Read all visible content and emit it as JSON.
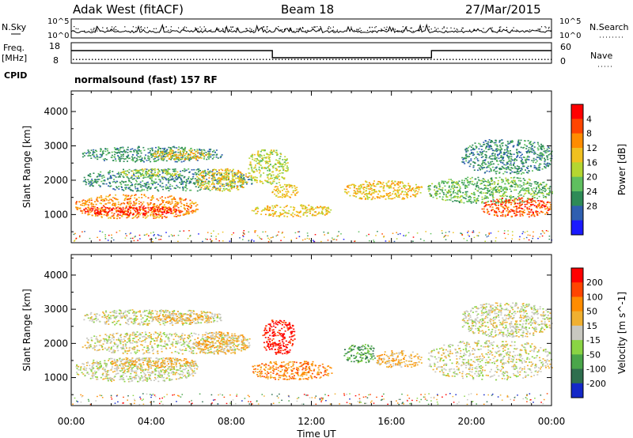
{
  "header": {
    "station": "Adak West (fitACF)",
    "beam": "Beam 18",
    "date": "27/Mar/2015"
  },
  "strip_labels": {
    "nsky": "N.Sky",
    "nsearch": "N.Search",
    "freq_line1": "Freq.",
    "freq_line2": "[MHz]",
    "nave": "Nave",
    "cpid": "CPID",
    "mode": "normalsound (fast) 157 RF"
  },
  "noise_ticks": [
    "10^5",
    "10^0"
  ],
  "freq_ticks": [
    "18",
    "8"
  ],
  "nave_ticks": [
    "60",
    "0"
  ],
  "chart_data": [
    {
      "type": "heatmap",
      "title": "",
      "quantity": "Power",
      "xlabel": "Time UT",
      "ylabel": "Slant Range [km]",
      "xlim": [
        "00:00",
        "24:00"
      ],
      "ylim": [
        180,
        4600
      ],
      "x_ticks": [
        "00:00",
        "04:00",
        "08:00",
        "12:00",
        "16:00",
        "20:00",
        "00:00"
      ],
      "y_ticks": [
        "1000",
        "2000",
        "3000",
        "4000"
      ],
      "colorbar": {
        "label": "Power [dB]",
        "ticks": [
          "4",
          "8",
          "12",
          "16",
          "20",
          "24",
          "28"
        ],
        "colors": [
          "#1a1aff",
          "#2f5fb0",
          "#2e8b57",
          "#5fbf5f",
          "#b5d631",
          "#f0c020",
          "#ff8c00",
          "#ff4500",
          "#ff0000"
        ]
      },
      "regions": [
        {
          "t0": 0.2,
          "t1": 6.3,
          "r0": 900,
          "r1": 1600,
          "level": 6
        },
        {
          "t0": 0.5,
          "t1": 5.5,
          "r0": 1000,
          "r1": 1250,
          "level": 8
        },
        {
          "t0": 0.5,
          "t1": 9.0,
          "r0": 1700,
          "r1": 2350,
          "level": 2
        },
        {
          "t0": 2.5,
          "t1": 5.5,
          "r0": 2100,
          "r1": 2350,
          "level": 4
        },
        {
          "t0": 0.5,
          "t1": 7.5,
          "r0": 2550,
          "r1": 3000,
          "level": 2
        },
        {
          "t0": 4.0,
          "t1": 7.0,
          "r0": 2600,
          "r1": 2900,
          "level": 5
        },
        {
          "t0": 6.2,
          "t1": 8.8,
          "r0": 1700,
          "r1": 2350,
          "level": 5
        },
        {
          "t0": 8.8,
          "t1": 10.8,
          "r0": 1900,
          "r1": 2900,
          "level": 4
        },
        {
          "t0": 10.0,
          "t1": 11.3,
          "r0": 1500,
          "r1": 1900,
          "level": 5
        },
        {
          "t0": 9.0,
          "t1": 13.0,
          "r0": 950,
          "r1": 1300,
          "level": 5
        },
        {
          "t0": 13.6,
          "t1": 17.5,
          "r0": 1450,
          "r1": 2000,
          "level": 5
        },
        {
          "t0": 17.8,
          "t1": 24.0,
          "r0": 1350,
          "r1": 2100,
          "level": 3
        },
        {
          "t0": 20.5,
          "t1": 24.0,
          "r0": 950,
          "r1": 1500,
          "level": 7
        },
        {
          "t0": 19.5,
          "t1": 24.0,
          "r0": 2200,
          "r1": 3200,
          "level": 2
        }
      ]
    },
    {
      "type": "heatmap",
      "title": "",
      "quantity": "Velocity",
      "xlabel": "Time UT",
      "ylabel": "Slant Range [km]",
      "xlim": [
        "00:00",
        "24:00"
      ],
      "ylim": [
        180,
        4600
      ],
      "x_ticks": [
        "00:00",
        "04:00",
        "08:00",
        "12:00",
        "16:00",
        "20:00",
        "00:00"
      ],
      "y_ticks": [
        "1000",
        "2000",
        "3000",
        "4000"
      ],
      "colorbar": {
        "label": "Velocity [m s^-1]",
        "ticks": [
          "200",
          "100",
          "50",
          "15",
          "-15",
          "-50",
          "-100",
          "-200"
        ],
        "colors": [
          "#1428c8",
          "#2e6e4e",
          "#4aa64a",
          "#8ad444",
          "#c8c8c0",
          "#f0b030",
          "#ff8c00",
          "#ff4500",
          "#ff0000"
        ]
      },
      "regions": [
        {
          "t0": 0.2,
          "t1": 6.3,
          "r0": 900,
          "r1": 1600,
          "level": 4
        },
        {
          "t0": 2.0,
          "t1": 6.3,
          "r0": 1300,
          "r1": 1600,
          "level": 5
        },
        {
          "t0": 0.5,
          "t1": 9.0,
          "r0": 1700,
          "r1": 2350,
          "level": 4
        },
        {
          "t0": 0.5,
          "t1": 7.5,
          "r0": 2550,
          "r1": 3000,
          "level": 4
        },
        {
          "t0": 4.0,
          "t1": 7.0,
          "r0": 2600,
          "r1": 2900,
          "level": 5
        },
        {
          "t0": 6.2,
          "t1": 8.8,
          "r0": 1700,
          "r1": 2350,
          "level": 5
        },
        {
          "t0": 9.5,
          "t1": 11.2,
          "r0": 1700,
          "r1": 2700,
          "level": 8
        },
        {
          "t0": 9.0,
          "t1": 13.0,
          "r0": 950,
          "r1": 1500,
          "level": 6
        },
        {
          "t0": 13.6,
          "t1": 15.2,
          "r0": 1450,
          "r1": 2000,
          "level": 2
        },
        {
          "t0": 15.2,
          "t1": 17.5,
          "r0": 1300,
          "r1": 1800,
          "level": 5
        },
        {
          "t0": 17.8,
          "t1": 24.0,
          "r0": 950,
          "r1": 2100,
          "level": 4
        },
        {
          "t0": 19.5,
          "t1": 24.0,
          "r0": 2200,
          "r1": 3200,
          "level": 4
        }
      ]
    }
  ]
}
